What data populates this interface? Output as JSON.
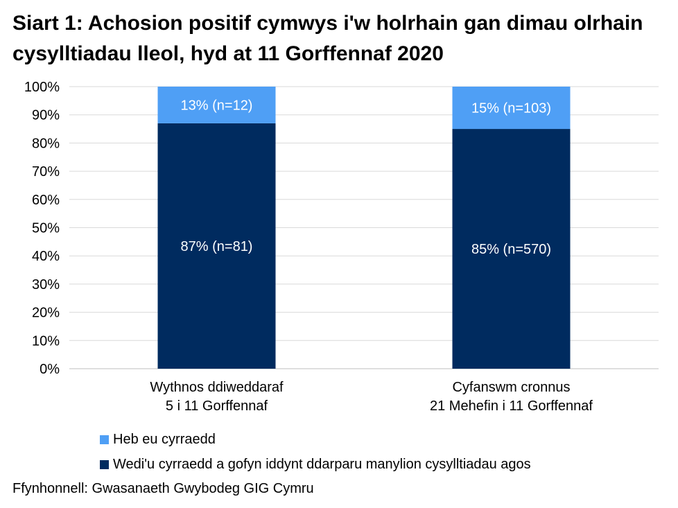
{
  "chart_data": {
    "type": "bar",
    "stacked": true,
    "title": "Siart 1: Achosion positif cymwys i'w holrhain gan dimau olrhain cysylltiadau lleol, hyd at 11 Gorffennaf 2020",
    "categories": [
      [
        "Wythnos ddiweddaraf",
        "5 i 11 Gorffennaf"
      ],
      [
        "Cyfanswm cronnus",
        "21 Mehefin i 11 Gorffennaf"
      ]
    ],
    "series": [
      {
        "name": "Wedi'u cyrraedd a gofyn iddynt ddarparu manylion cysylltiadau agos",
        "color": "#002b5f",
        "values": [
          87,
          85
        ],
        "labels": [
          "87% (n=81)",
          "85% (n=570)"
        ]
      },
      {
        "name": "Heb eu cyrraedd",
        "color": "#4f9ff5",
        "values": [
          13,
          15
        ],
        "labels": [
          "13% (n=12)",
          "15% (n=103)"
        ]
      }
    ],
    "ylim": [
      0,
      100
    ],
    "yticks": [
      "0%",
      "10%",
      "20%",
      "30%",
      "40%",
      "50%",
      "60%",
      "70%",
      "80%",
      "90%",
      "100%"
    ],
    "grid": true,
    "legend_position": "bottom-left",
    "legend_order": [
      1,
      0
    ]
  },
  "source": "Ffynhonnell: Gwasanaeth Gwybodeg GIG Cymru"
}
